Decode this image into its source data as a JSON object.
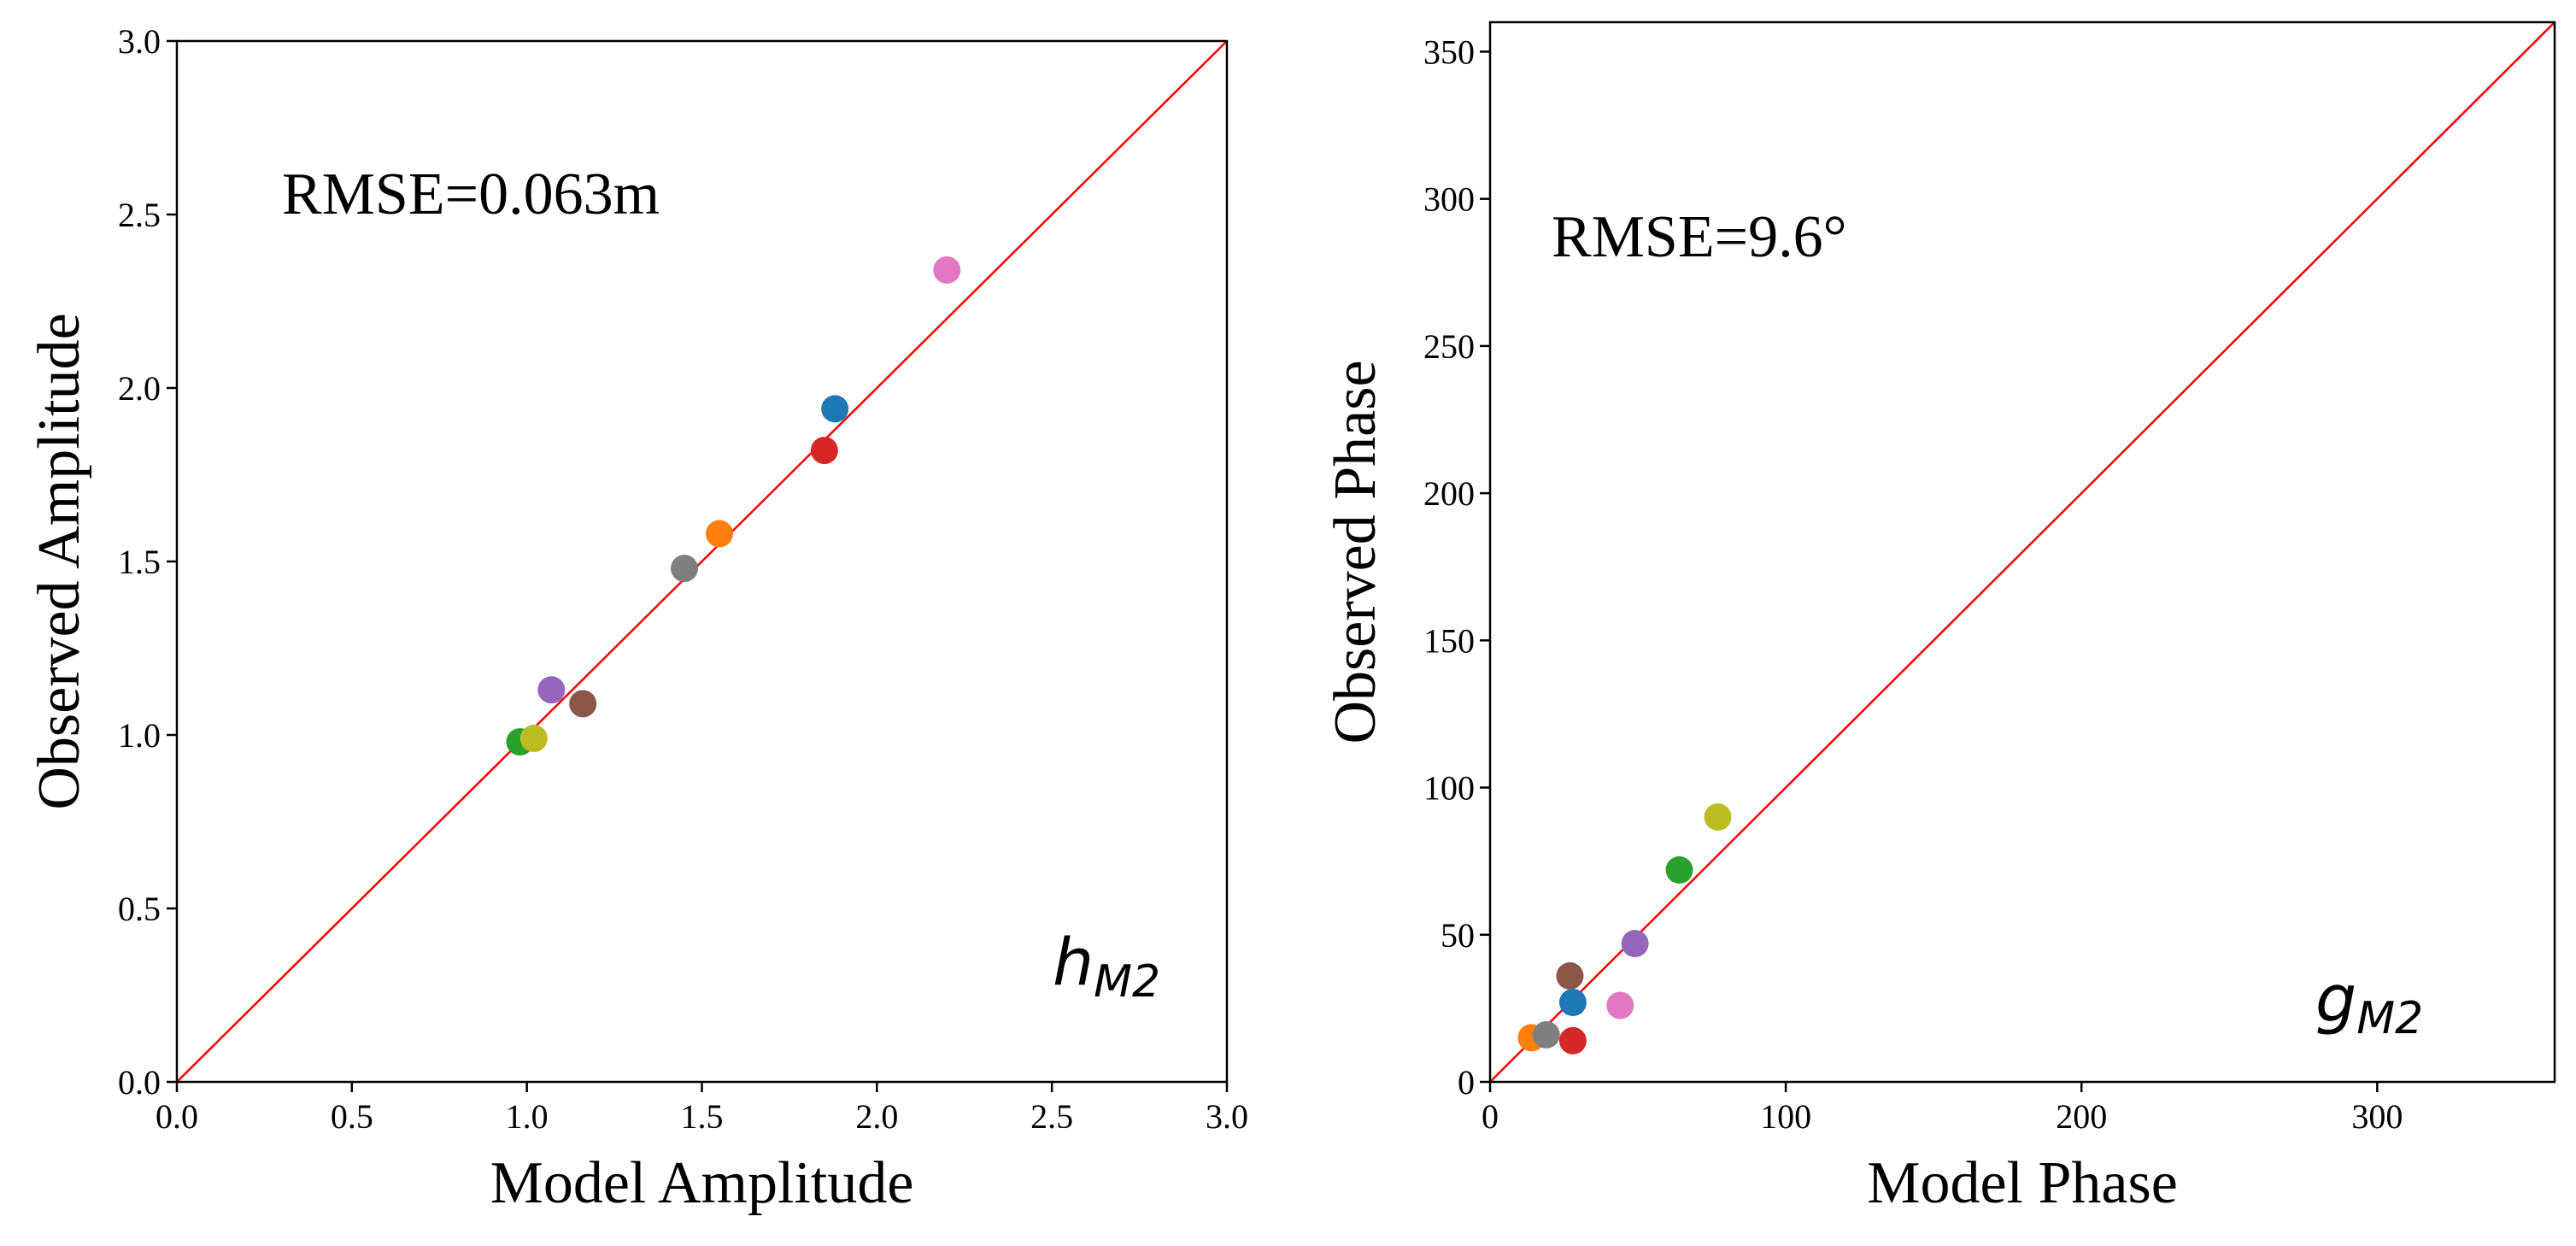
{
  "chart_data": [
    {
      "type": "scatter",
      "xlabel": "Model Amplitude",
      "ylabel": "Observed Amplitude",
      "xlim": [
        0,
        3.0
      ],
      "ylim": [
        0,
        3.0
      ],
      "xticks": [
        "0.0",
        "0.5",
        "1.0",
        "1.5",
        "2.0",
        "2.5",
        "3.0"
      ],
      "yticks": [
        "0.0",
        "0.5",
        "1.0",
        "1.5",
        "2.0",
        "2.5",
        "3.0"
      ],
      "xtick_values": [
        0,
        0.5,
        1.0,
        1.5,
        2.0,
        2.5,
        3.0
      ],
      "ytick_values": [
        0,
        0.5,
        1.0,
        1.5,
        2.0,
        2.5,
        3.0
      ],
      "annotation": "RMSE=0.063m",
      "symbol": {
        "base": "h",
        "sub": "M2"
      },
      "reference_line": {
        "from": [
          0,
          0
        ],
        "to": [
          3.0,
          3.0
        ],
        "color": "#ff0000"
      },
      "points": [
        {
          "x": 1.88,
          "y": 1.94,
          "color": "#1f77b4"
        },
        {
          "x": 1.55,
          "y": 1.58,
          "color": "#ff7f0e"
        },
        {
          "x": 0.98,
          "y": 0.98,
          "color": "#2ca02c"
        },
        {
          "x": 1.85,
          "y": 1.82,
          "color": "#d62728"
        },
        {
          "x": 1.07,
          "y": 1.13,
          "color": "#9467bd"
        },
        {
          "x": 1.16,
          "y": 1.09,
          "color": "#8c564b"
        },
        {
          "x": 2.2,
          "y": 2.34,
          "color": "#e377c2"
        },
        {
          "x": 1.45,
          "y": 1.48,
          "color": "#7f7f7f"
        },
        {
          "x": 1.02,
          "y": 0.99,
          "color": "#bcbd22"
        }
      ]
    },
    {
      "type": "scatter",
      "xlabel": "Model Phase",
      "ylabel": "Observed Phase",
      "xlim": [
        0,
        360
      ],
      "ylim": [
        0,
        360
      ],
      "xticks": [
        "0",
        "100",
        "200",
        "300"
      ],
      "yticks": [
        "0",
        "50",
        "100",
        "150",
        "200",
        "250",
        "300",
        "350"
      ],
      "xtick_values": [
        0,
        100,
        200,
        300
      ],
      "ytick_values": [
        0,
        50,
        100,
        150,
        200,
        250,
        300,
        350
      ],
      "annotation": "RMSE=9.6°",
      "symbol": {
        "base": "g",
        "sub": "M2"
      },
      "reference_line": {
        "from": [
          0,
          0
        ],
        "to": [
          360,
          360
        ],
        "color": "#ff0000"
      },
      "points": [
        {
          "x": 28,
          "y": 27,
          "color": "#1f77b4"
        },
        {
          "x": 14,
          "y": 15,
          "color": "#ff7f0e"
        },
        {
          "x": 64,
          "y": 72,
          "color": "#2ca02c"
        },
        {
          "x": 28,
          "y": 14,
          "color": "#d62728"
        },
        {
          "x": 49,
          "y": 47,
          "color": "#9467bd"
        },
        {
          "x": 27,
          "y": 36,
          "color": "#8c564b"
        },
        {
          "x": 44,
          "y": 26,
          "color": "#e377c2"
        },
        {
          "x": 19,
          "y": 16,
          "color": "#7f7f7f"
        },
        {
          "x": 77,
          "y": 90,
          "color": "#bcbd22"
        }
      ]
    }
  ]
}
